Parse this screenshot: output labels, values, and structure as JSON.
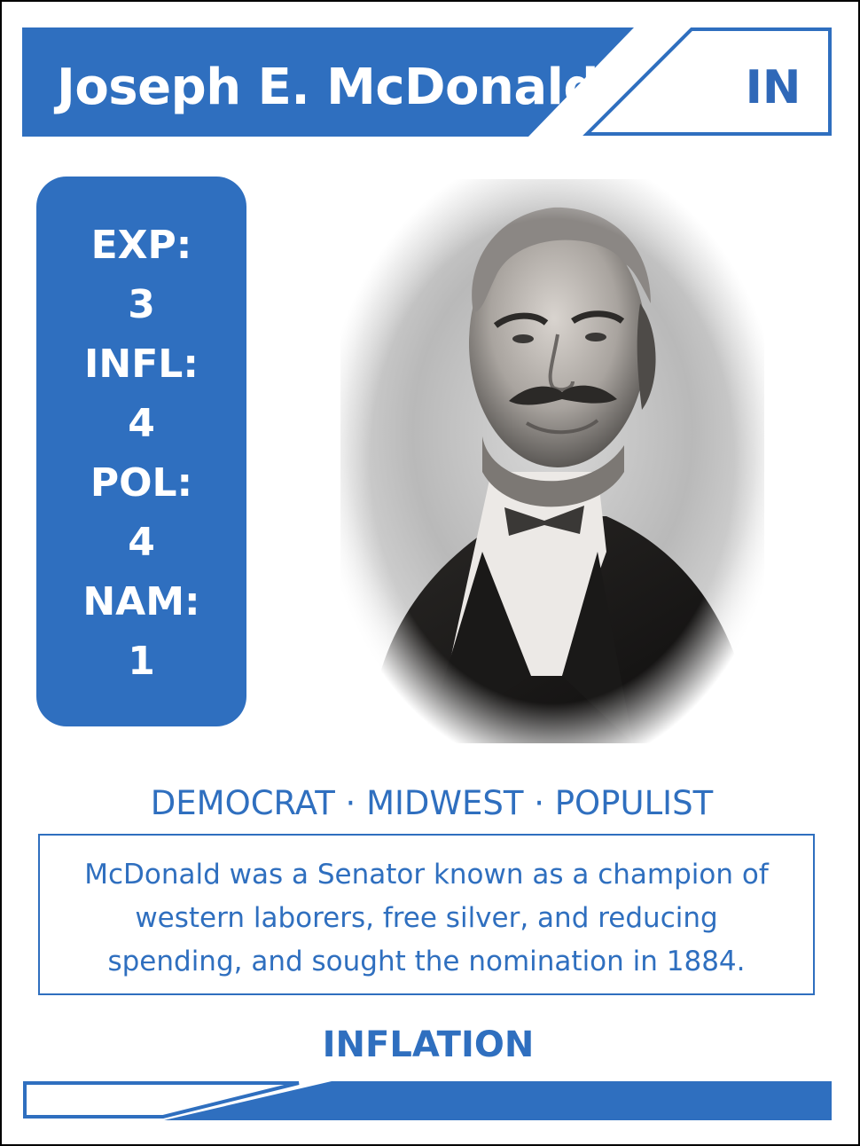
{
  "card": {
    "name": "Joseph E. McDonald",
    "state": "IN",
    "stats": [
      "EXP:",
      "3",
      "INFL:",
      "4",
      "POL:",
      "4",
      "NAM:",
      "1"
    ],
    "tags": "DEMOCRAT · MIDWEST · POPULIST",
    "bio": "McDonald was a Senator known as a champion of western laborers, free silver, and reducing spending, and sought the nomination in 1884.",
    "ability": "INFLATION"
  },
  "colors": {
    "accent": "#2f6fbf",
    "text_accent": "#2f68b8",
    "background": "#ffffff",
    "border": "#000000"
  }
}
